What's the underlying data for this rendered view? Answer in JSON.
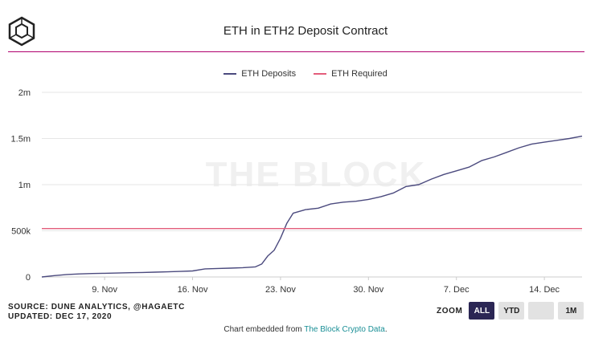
{
  "header": {
    "title": "ETH in ETH2 Deposit Contract"
  },
  "legend": [
    {
      "label": "ETH Deposits",
      "color": "#4b4a7e"
    },
    {
      "label": "ETH Required",
      "color": "#e35d7b"
    }
  ],
  "watermark": "THE BLOCK",
  "chart_data": {
    "type": "line",
    "title": "ETH in ETH2 Deposit Contract",
    "xlabel": "",
    "ylabel": "",
    "x_tick_labels": [
      "9. Nov",
      "16. Nov",
      "23. Nov",
      "30. Nov",
      "7. Dec",
      "14. Dec"
    ],
    "x_ticks": [
      "2020-11-09",
      "2020-11-16",
      "2020-11-23",
      "2020-11-30",
      "2020-12-07",
      "2020-12-14"
    ],
    "x_range": [
      "2020-11-04",
      "2020-12-17"
    ],
    "y_tick_labels": [
      "0",
      "500k",
      "1m",
      "1.5m",
      "2m"
    ],
    "y_ticks": [
      0,
      500000,
      1000000,
      1500000,
      2000000
    ],
    "ylim": [
      0,
      2000000
    ],
    "grid": "horizontal",
    "legend_position": "top-center",
    "series": [
      {
        "name": "ETH Deposits",
        "color": "#4b4a7e",
        "points": [
          [
            "2020-11-04",
            0
          ],
          [
            "2020-11-05",
            15000
          ],
          [
            "2020-11-06",
            27000
          ],
          [
            "2020-11-07",
            33000
          ],
          [
            "2020-11-08",
            37000
          ],
          [
            "2020-11-09",
            40000
          ],
          [
            "2020-11-10",
            43000
          ],
          [
            "2020-11-11",
            46000
          ],
          [
            "2020-11-12",
            49000
          ],
          [
            "2020-11-13",
            52000
          ],
          [
            "2020-11-14",
            56000
          ],
          [
            "2020-11-15",
            60000
          ],
          [
            "2020-11-16",
            65000
          ],
          [
            "2020-11-17",
            88000
          ],
          [
            "2020-11-18",
            92000
          ],
          [
            "2020-11-19",
            96000
          ],
          [
            "2020-11-20",
            101000
          ],
          [
            "2020-11-21",
            110000
          ],
          [
            "2020-11-21.5",
            140000
          ],
          [
            "2020-11-22",
            230000
          ],
          [
            "2020-11-22.5",
            290000
          ],
          [
            "2020-11-23",
            420000
          ],
          [
            "2020-11-23.5",
            580000
          ],
          [
            "2020-11-24",
            690000
          ],
          [
            "2020-11-25",
            730000
          ],
          [
            "2020-11-26",
            745000
          ],
          [
            "2020-11-27",
            790000
          ],
          [
            "2020-11-28",
            810000
          ],
          [
            "2020-11-29",
            820000
          ],
          [
            "2020-11-30",
            840000
          ],
          [
            "2020-12-01",
            870000
          ],
          [
            "2020-12-02",
            910000
          ],
          [
            "2020-12-03",
            980000
          ],
          [
            "2020-12-04",
            1000000
          ],
          [
            "2020-12-05",
            1060000
          ],
          [
            "2020-12-06",
            1110000
          ],
          [
            "2020-12-07",
            1150000
          ],
          [
            "2020-12-08",
            1190000
          ],
          [
            "2020-12-09",
            1260000
          ],
          [
            "2020-12-10",
            1300000
          ],
          [
            "2020-12-11",
            1350000
          ],
          [
            "2020-12-12",
            1400000
          ],
          [
            "2020-12-13",
            1440000
          ],
          [
            "2020-12-14",
            1460000
          ],
          [
            "2020-12-15",
            1480000
          ],
          [
            "2020-12-16",
            1500000
          ],
          [
            "2020-12-17",
            1525000
          ]
        ]
      },
      {
        "name": "ETH Required",
        "color": "#e35d7b",
        "points": [
          [
            "2020-11-04",
            524288
          ],
          [
            "2020-12-17",
            524288
          ]
        ]
      }
    ]
  },
  "footer": {
    "source": "SOURCE: DUNE ANALYTICS, @HAGAETC",
    "updated": "UPDATED: DEC 17, 2020"
  },
  "zoom": {
    "label": "ZOOM",
    "buttons": [
      {
        "label": "ALL",
        "active": true
      },
      {
        "label": "YTD",
        "active": false
      },
      {
        "label": "",
        "active": false
      },
      {
        "label": "1M",
        "active": false
      }
    ]
  },
  "embed": {
    "prefix": "Chart embedded from ",
    "link": "The Block Crypto Data",
    "suffix": "."
  }
}
